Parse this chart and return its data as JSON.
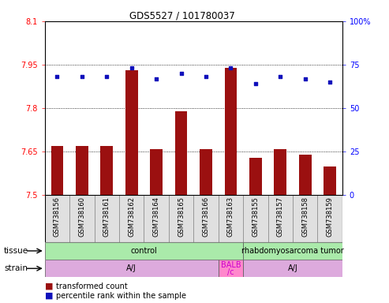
{
  "title": "GDS5527 / 101780037",
  "samples": [
    "GSM738156",
    "GSM738160",
    "GSM738161",
    "GSM738162",
    "GSM738164",
    "GSM738165",
    "GSM738166",
    "GSM738163",
    "GSM738155",
    "GSM738157",
    "GSM738158",
    "GSM738159"
  ],
  "bar_values": [
    7.67,
    7.67,
    7.67,
    7.93,
    7.66,
    7.79,
    7.66,
    7.94,
    7.63,
    7.66,
    7.64,
    7.6
  ],
  "dot_values": [
    68,
    68,
    68,
    73,
    67,
    70,
    68,
    73,
    64,
    68,
    67,
    65
  ],
  "ymin": 7.5,
  "ymax": 8.1,
  "y2min": 0,
  "y2max": 100,
  "yticks": [
    7.5,
    7.65,
    7.8,
    7.95,
    8.1
  ],
  "ytick_labels": [
    "7.5",
    "7.65",
    "7.8",
    "7.95",
    "8.1"
  ],
  "y2ticks": [
    0,
    25,
    50,
    75,
    100
  ],
  "y2tick_labels": [
    "0",
    "25",
    "50",
    "75",
    "100%"
  ],
  "bar_color": "#9B1010",
  "dot_color": "#1010BB",
  "tissue_labels": [
    {
      "text": "control",
      "start": 0,
      "end": 7,
      "color": "#AAEAAA"
    },
    {
      "text": "rhabdomyosarcoma tumor",
      "start": 8,
      "end": 11,
      "color": "#AAEAAA"
    }
  ],
  "strain_labels": [
    {
      "text": "A/J",
      "start": 0,
      "end": 6,
      "color": "#DDAADD"
    },
    {
      "text": "BALB\n/c",
      "start": 7,
      "end": 7,
      "color": "#FF88CC"
    },
    {
      "text": "A/J",
      "start": 8,
      "end": 11,
      "color": "#DDAADD"
    }
  ],
  "legend_items": [
    {
      "color": "#9B1010",
      "label": "transformed count"
    },
    {
      "color": "#1010BB",
      "label": "percentile rank within the sample"
    }
  ]
}
